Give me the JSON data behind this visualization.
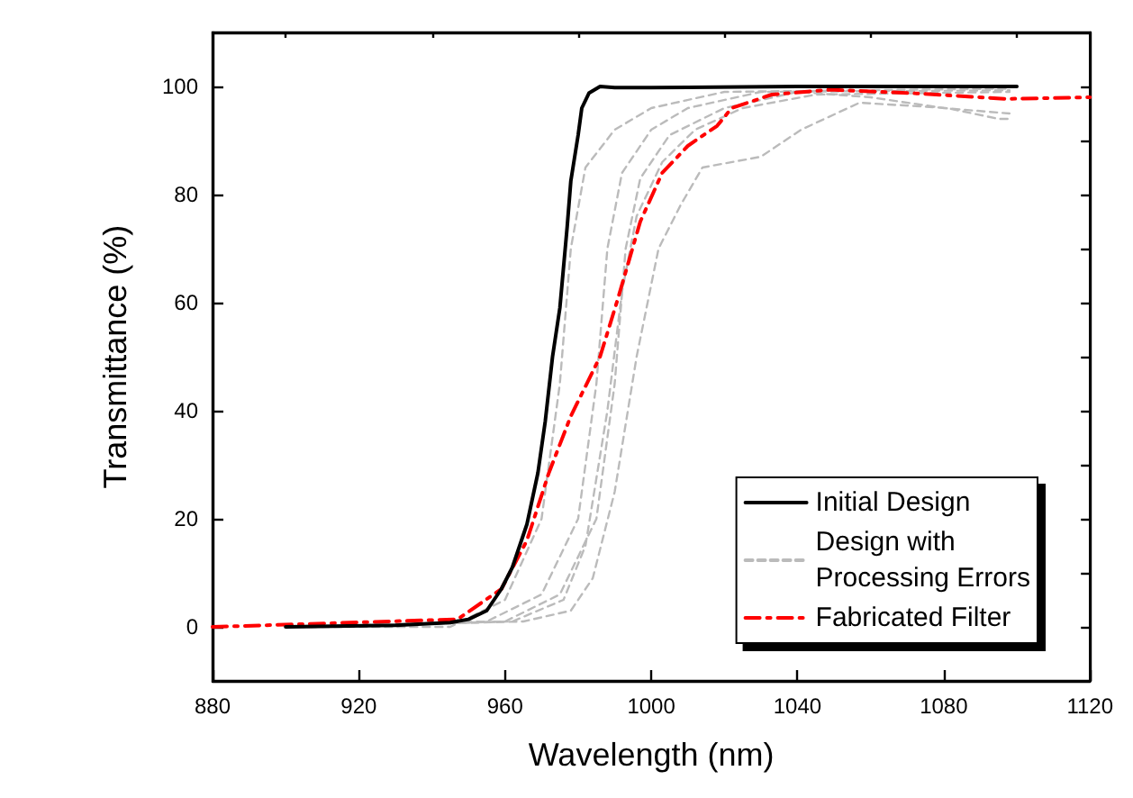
{
  "chart_data": {
    "type": "line",
    "xlabel": "Wavelength (nm)",
    "ylabel": "Transmittance (%)",
    "xlim": [
      880,
      1120
    ],
    "xticks": [
      880,
      920,
      960,
      1000,
      1040,
      1080,
      1120
    ],
    "ylim": [
      -10,
      110
    ],
    "yticks": [
      0,
      20,
      40,
      60,
      80,
      100
    ],
    "grid": false,
    "legend": "bottom right",
    "marker": "none",
    "series": [
      {
        "name": "Initial Design",
        "color": "#000000",
        "line_style": "solid",
        "x": [
          900,
          930,
          945,
          950,
          955,
          959,
          962,
          966,
          969,
          971,
          973,
          975,
          977,
          978,
          980,
          981,
          983,
          986,
          990,
          1000,
          1040,
          1100
        ],
        "values": [
          0,
          0.3,
          0.8,
          1.4,
          3,
          7,
          11,
          19,
          28.5,
          38,
          50,
          59,
          74,
          82.5,
          91,
          96,
          98.8,
          100,
          99.8,
          99.8,
          100,
          100
        ]
      },
      {
        "name": "Design with\nProcessing Errors",
        "color": "#bbbbbb",
        "line_style": "dashed",
        "x": [
          903,
          945,
          960,
          970,
          975,
          978,
          982,
          990,
          1000,
          1020,
          1098
        ],
        "values": [
          0,
          0,
          5,
          20,
          45,
          70,
          85,
          92,
          96,
          99,
          99.6
        ]
      },
      {
        "color": "#bbbbbb",
        "line_style": "dashed",
        "x": [
          904,
          955,
          970,
          980,
          985,
          988,
          992,
          1000,
          1010,
          1030,
          1098
        ],
        "values": [
          0,
          1,
          6,
          20,
          45,
          70,
          84,
          92,
          96,
          99,
          99.3
        ]
      },
      {
        "color": "#bbbbbb",
        "line_style": "dashed",
        "x": [
          905,
          960,
          975,
          985,
          990,
          993,
          997,
          1005,
          1020,
          1040,
          1060,
          1080,
          1098
        ],
        "values": [
          0,
          1,
          6,
          20,
          45,
          70,
          83,
          91,
          96,
          99,
          98,
          96,
          95
        ]
      },
      {
        "color": "#bbbbbb",
        "line_style": "dashed",
        "x": [
          906,
          965,
          978,
          984,
          990,
          996,
          1002,
          1008,
          1014,
          1030,
          1041,
          1057,
          1081,
          1095,
          1098
        ],
        "values": [
          0,
          1,
          3,
          9,
          25,
          50,
          70,
          78,
          85,
          87,
          92,
          97,
          96,
          94,
          94
        ]
      },
      {
        "color": "#bbbbbb",
        "line_style": "dashed",
        "x": [
          907,
          962,
          976,
          982,
          988,
          992,
          996,
          1003,
          1012,
          1025,
          1045,
          1098
        ],
        "values": [
          0,
          1,
          5,
          15,
          40,
          62,
          76,
          86,
          92,
          96,
          98.5,
          99
        ]
      },
      {
        "name": "Fabricated Filter",
        "color": "#ff0000",
        "line_style": "dashdot",
        "x": [
          880,
          947,
          959,
          966,
          972,
          978,
          986,
          991,
          997,
          1003,
          1010,
          1018,
          1022,
          1033,
          1049,
          1073,
          1097,
          1120
        ],
        "values": [
          0,
          1.4,
          7,
          16,
          28.5,
          39,
          50,
          61,
          75,
          84,
          89,
          92.7,
          96,
          98.5,
          99.4,
          98.7,
          97.7,
          98
        ]
      }
    ]
  }
}
